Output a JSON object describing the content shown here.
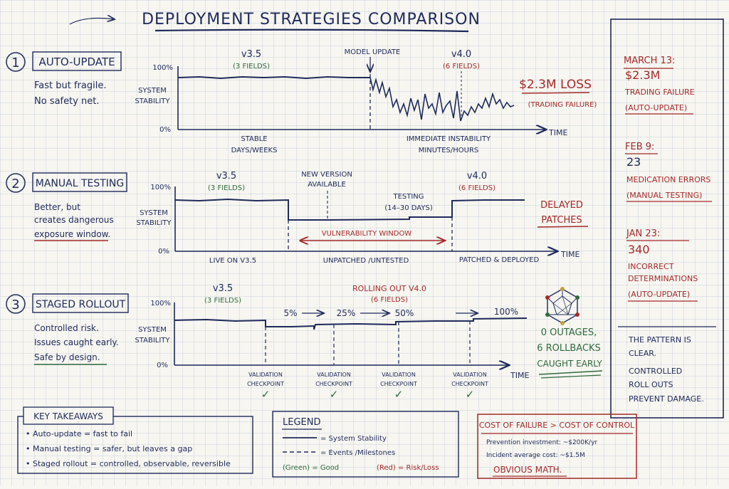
{
  "title": "Deployment Strategies Comparison",
  "colors": {
    "ink": "#1f2a5a",
    "red": "#a52a2a",
    "green": "#2f6b3d",
    "paper": "#f7f6f1"
  },
  "sections": [
    {
      "number": "1",
      "name": "Auto-Update",
      "desc": [
        "Fast but fragile.",
        "No safety net."
      ],
      "y_top": "100%",
      "y_bottom": "0%",
      "y_label": [
        "System",
        "Stability"
      ],
      "x_label": "Time",
      "v_old": "v3.5",
      "v_old_fields": "(3 fields)",
      "event_label": "Model update",
      "v_new": "v4.0",
      "v_new_fields": "(6 fields)",
      "bottom_left": [
        "Stable",
        "days/weeks"
      ],
      "bottom_right": [
        "Immediate instability",
        "minutes/hours"
      ],
      "callout_main": "$2.3M loss",
      "callout_sub": "(trading failure)"
    },
    {
      "number": "2",
      "name": "Manual Testing",
      "desc": [
        "Better, but",
        "creates dangerous",
        "exposure window."
      ],
      "y_top": "100%",
      "y_bottom": "0%",
      "y_label": [
        "System",
        "Stability"
      ],
      "x_label": "Time",
      "v_old": "v3.5",
      "v_old_fields": "(3 fields)",
      "event_label": [
        "New version",
        "available"
      ],
      "testing_label": [
        "Testing",
        "(14–30 days)"
      ],
      "window_label": "Vulnerability window",
      "v_new": "v4.0",
      "v_new_fields": "(6 fields)",
      "bottom_left": "Live on v3.5",
      "bottom_mid": "Unpatched /untested",
      "bottom_right": "Patched & deployed",
      "callout_main": [
        "Delayed",
        "patches"
      ]
    },
    {
      "number": "3",
      "name": "Staged Rollout",
      "desc": [
        "Controlled risk.",
        "Issues caught early.",
        "Safe by design."
      ],
      "y_top": "100%",
      "y_bottom": "0%",
      "y_label": [
        "System",
        "Stability"
      ],
      "x_label": "Time",
      "v_old": "v3.5",
      "v_old_fields": "(3 fields)",
      "rollout_label": "Rolling out v4.0",
      "rollout_fields": "(6 fields)",
      "stages": [
        "5%",
        "25%",
        "50%",
        "100%"
      ],
      "checkpoint_label": [
        "Validation",
        "checkpoint"
      ],
      "check_mark": "✓",
      "callout_main": [
        "0 outages,",
        "6 rollbacks",
        "caught early"
      ]
    }
  ],
  "incidents": [
    {
      "date": "March 13:",
      "value": "$2.3M",
      "desc": [
        "Trading failure"
      ],
      "source": "(Auto-update)"
    },
    {
      "date": "Feb 9:",
      "value": "23",
      "desc": [
        "Medication errors"
      ],
      "source": "(Manual testing)"
    },
    {
      "date": "Jan 23:",
      "value": "340",
      "desc": [
        "Incorrect",
        "determinations"
      ],
      "source": "(Auto-update)"
    }
  ],
  "pattern": [
    "The pattern is",
    "clear.",
    "Controlled",
    "roll outs",
    "prevent damage."
  ],
  "takeaways": {
    "title": "Key Takeaways",
    "items": [
      "Auto-update = fast to fail",
      "Manual testing = safer, but leaves a gap",
      "Staged rollout = controlled, observable, reversible"
    ]
  },
  "legend": {
    "title": "Legend",
    "solid": "= System Stability",
    "dashed": "= Events /Milestones",
    "green": "(Green) = Good",
    "red": "(Red) = Risk/Loss"
  },
  "cost": {
    "title": "Cost of Failure > Cost of Control",
    "line1": "Prevention investment: ~$200K/yr",
    "line2": "Incident average cost: ~$1.5M",
    "conclusion": "Obvious math."
  }
}
